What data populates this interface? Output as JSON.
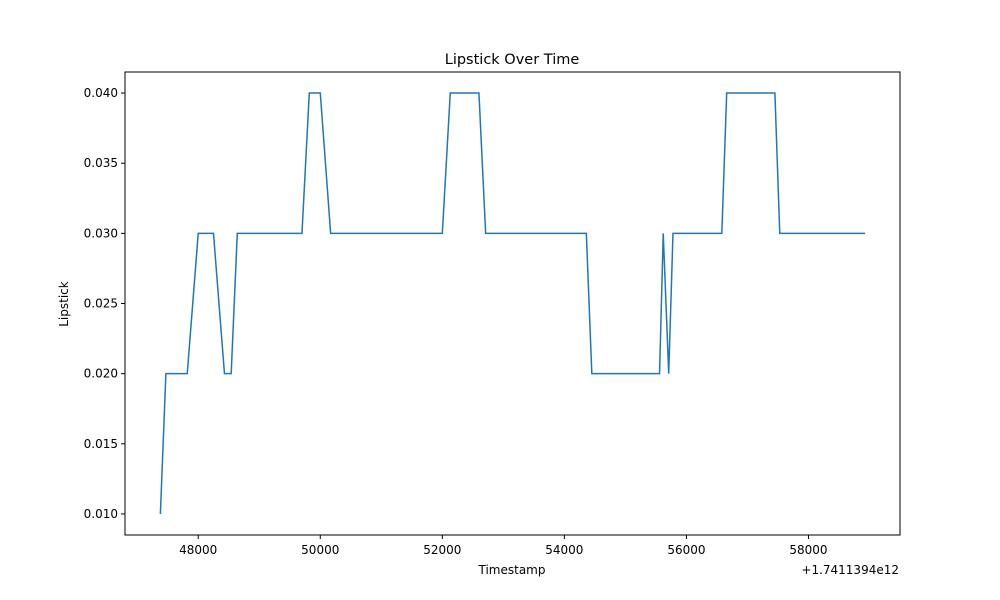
{
  "chart_data": {
    "type": "line",
    "title": "Lipstick Over Time",
    "xlabel": "Timestamp",
    "ylabel": "Lipstick",
    "x_offset_label": "+1.7411394e12",
    "xlim": [
      46800,
      59500
    ],
    "ylim": [
      0.0085,
      0.0415
    ],
    "x_ticks": [
      48000,
      50000,
      52000,
      54000,
      56000,
      58000
    ],
    "x_tick_labels": [
      "48000",
      "50000",
      "52000",
      "54000",
      "56000",
      "58000"
    ],
    "y_ticks": [
      0.01,
      0.015,
      0.02,
      0.025,
      0.03,
      0.035,
      0.04
    ],
    "y_tick_labels": [
      "0.010",
      "0.015",
      "0.020",
      "0.025",
      "0.030",
      "0.035",
      "0.040"
    ],
    "grid": false,
    "line_color": "#1f77b4",
    "series": [
      {
        "x": [
          47380,
          47470,
          47820,
          48000,
          48250,
          48430,
          48540,
          48640,
          49700,
          49820,
          50000,
          50170,
          52000,
          52130,
          52600,
          52710,
          54360,
          54450,
          55560,
          55620,
          55710,
          55780,
          56580,
          56660,
          57450,
          57530,
          58930
        ],
        "y": [
          0.01,
          0.02,
          0.02,
          0.03,
          0.03,
          0.02,
          0.02,
          0.03,
          0.03,
          0.04,
          0.04,
          0.03,
          0.03,
          0.04,
          0.04,
          0.03,
          0.03,
          0.02,
          0.02,
          0.03,
          0.02,
          0.03,
          0.03,
          0.04,
          0.04,
          0.03,
          0.03
        ]
      }
    ]
  }
}
